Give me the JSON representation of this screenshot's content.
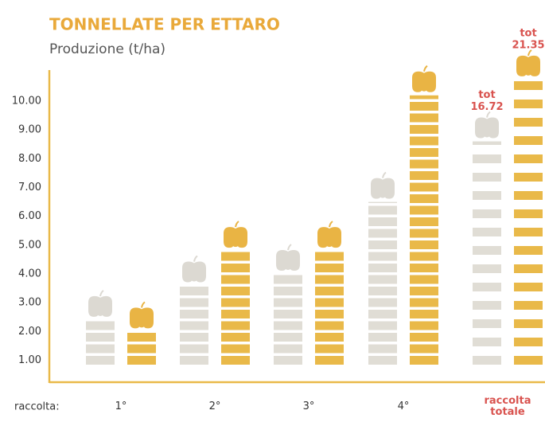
{
  "chart_data": {
    "type": "pictogram-bar",
    "title": "TONNELLATE PER ETTARO",
    "subtitle": "Produzione (t/ha)",
    "x_label": "raccolta:",
    "total_label": "tot",
    "categories": [
      "1°",
      "2°",
      "3°",
      "4°",
      "raccolta totale"
    ],
    "series": [
      {
        "color": "#e0ddd5",
        "values": [
          2.4,
          3.6,
          4.0,
          6.5,
          null
        ]
      },
      {
        "color": "#e9b949",
        "values": [
          2.0,
          4.8,
          4.8,
          10.2,
          null
        ]
      },
      {
        "color": "#e0ddd5",
        "axis": "y2",
        "values": [
          null,
          null,
          null,
          null,
          16.72
        ]
      },
      {
        "color": "#e9b949",
        "axis": "y2",
        "values": [
          null,
          null,
          null,
          null,
          21.35
        ]
      }
    ],
    "ylim": [
      0.85,
      11.05
    ],
    "yticks": [
      {
        "value": 1,
        "label": "1.00"
      },
      {
        "value": 2,
        "label": "2.00"
      },
      {
        "value": 3,
        "label": "3.00"
      },
      {
        "value": 4,
        "label": "4.00"
      },
      {
        "value": 5,
        "label": "5.00"
      },
      {
        "value": 6,
        "label": "6.00"
      },
      {
        "value": 7,
        "label": "7.00"
      },
      {
        "value": 8,
        "label": "8.00"
      },
      {
        "value": 9,
        "label": "9.00"
      },
      {
        "value": 10,
        "label": "10.00"
      }
    ],
    "y2lim": [
      0,
      22
    ],
    "grid": false
  }
}
